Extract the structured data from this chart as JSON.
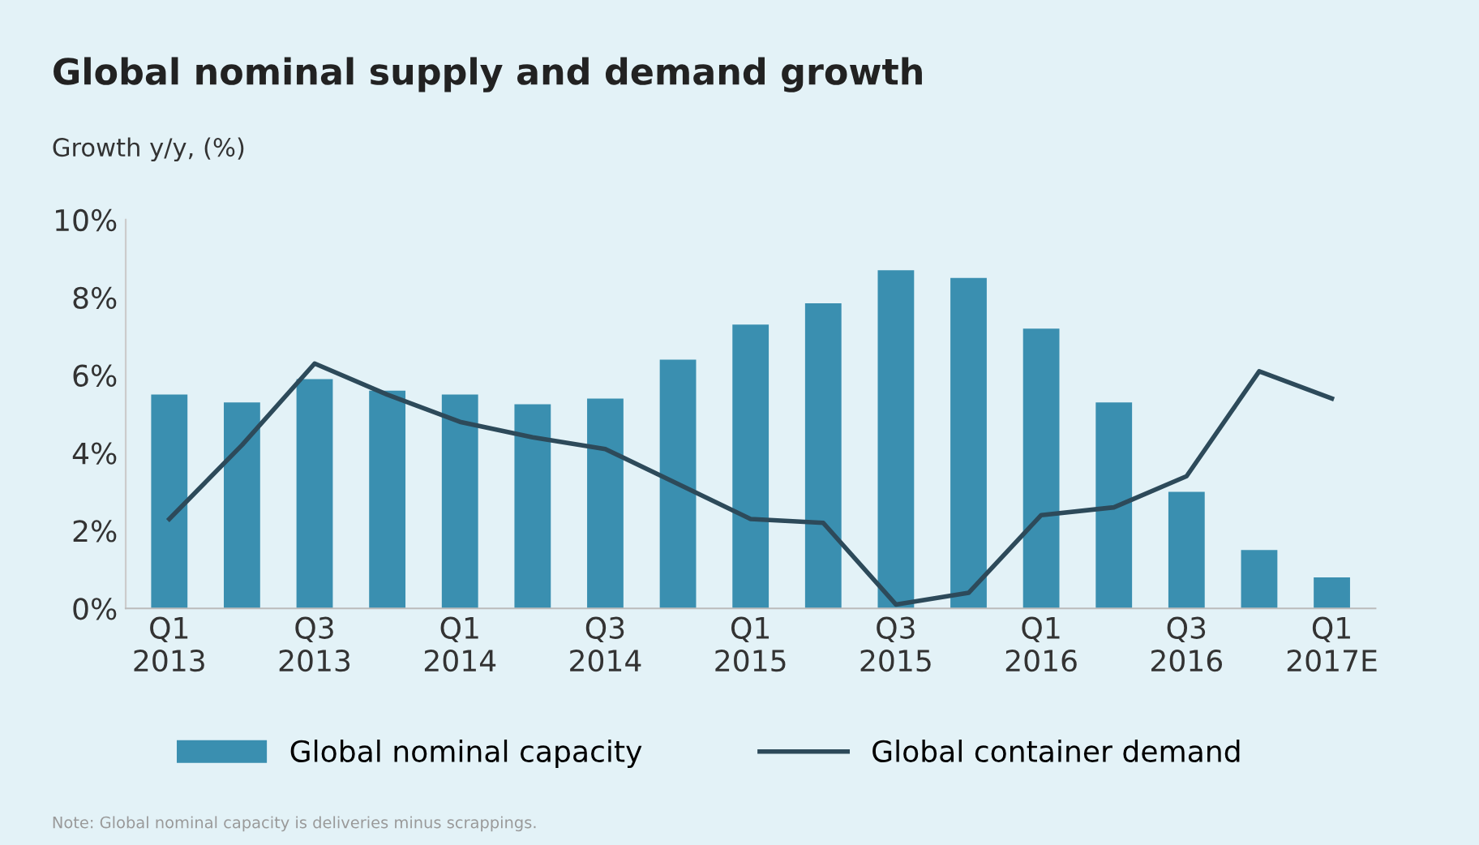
{
  "chart_data": {
    "type": "bar",
    "title": "Global nominal supply and demand growth",
    "ylabel": "Growth y/y, (%)",
    "categories": [
      "Q1\n2013",
      null,
      "Q3\n2013",
      null,
      "Q1\n2014",
      null,
      "Q3\n2014",
      null,
      "Q1\n2015",
      null,
      "Q3\n2015",
      null,
      "Q1\n2016",
      null,
      "Q3\n2016",
      null,
      "Q1\n2017E"
    ],
    "series": [
      {
        "name": "Global nominal capacity",
        "color": "#3a8fb0",
        "values": [
          5.5,
          5.3,
          5.9,
          5.6,
          5.5,
          5.25,
          5.4,
          6.4,
          7.3,
          7.85,
          8.7,
          8.5,
          7.2,
          5.3,
          3.0,
          1.5,
          0.8
        ]
      },
      {
        "name": "Global container demand",
        "type": "line",
        "color": "#2d4a5a",
        "values": [
          2.3,
          4.2,
          6.3,
          5.5,
          4.8,
          4.4,
          4.1,
          3.2,
          2.3,
          2.2,
          0.1,
          0.4,
          2.4,
          2.6,
          3.4,
          6.1,
          5.4
        ]
      }
    ],
    "ylim": [
      0,
      10
    ],
    "yticks": [
      {
        "value": 0,
        "label": "0%"
      },
      {
        "value": 2,
        "label": "2%"
      },
      {
        "value": 4,
        "label": "4%"
      },
      {
        "value": 6,
        "label": "6%"
      },
      {
        "value": 8,
        "label": "8%"
      },
      {
        "value": 10,
        "label": "10%"
      }
    ],
    "grid": false,
    "legend": "bottom",
    "marker": "none",
    "line_style": "solid",
    "annotations": [
      "Note: Global nominal capacity is deliveries minus scrappings."
    ]
  }
}
